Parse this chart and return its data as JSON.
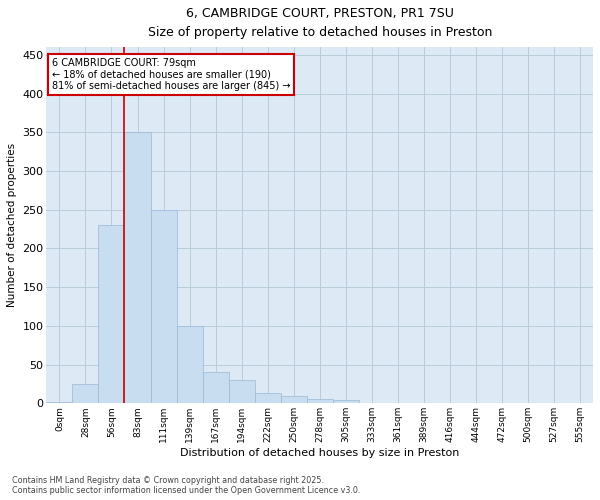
{
  "title_line1": "6, CAMBRIDGE COURT, PRESTON, PR1 7SU",
  "title_line2": "Size of property relative to detached houses in Preston",
  "xlabel": "Distribution of detached houses by size in Preston",
  "ylabel": "Number of detached properties",
  "categories": [
    "0sqm",
    "28sqm",
    "56sqm",
    "83sqm",
    "111sqm",
    "139sqm",
    "167sqm",
    "194sqm",
    "222sqm",
    "250sqm",
    "278sqm",
    "305sqm",
    "333sqm",
    "361sqm",
    "389sqm",
    "416sqm",
    "444sqm",
    "472sqm",
    "500sqm",
    "527sqm",
    "555sqm"
  ],
  "values": [
    2,
    25,
    230,
    350,
    250,
    100,
    40,
    30,
    13,
    10,
    5,
    4,
    0,
    1,
    0,
    0,
    0,
    0,
    0,
    0,
    1
  ],
  "bar_color": "#c9ddf0",
  "bar_edge_color": "#9ab8d8",
  "grid_color": "#b8ccdc",
  "bg_color": "#ddeaf5",
  "vline_color": "#cc0000",
  "annotation_text": "6 CAMBRIDGE COURT: 79sqm\n← 18% of detached houses are smaller (190)\n81% of semi-detached houses are larger (845) →",
  "annotation_box_edgecolor": "#cc0000",
  "ylim": [
    0,
    460
  ],
  "yticks": [
    0,
    50,
    100,
    150,
    200,
    250,
    300,
    350,
    400,
    450
  ],
  "footer_line1": "Contains HM Land Registry data © Crown copyright and database right 2025.",
  "footer_line2": "Contains public sector information licensed under the Open Government Licence v3.0."
}
